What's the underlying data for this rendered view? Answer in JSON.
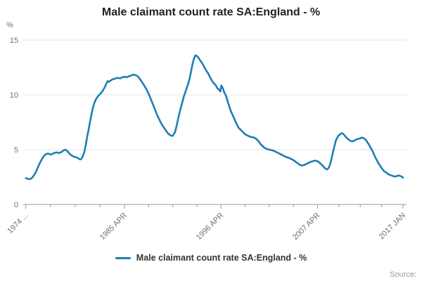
{
  "title": "Male claimant count rate SA:England - %",
  "legend": {
    "label": "Male claimant count rate SA:England - %"
  },
  "source_label": "Source:",
  "colors": {
    "line": "#1d7fb5",
    "grid": "#e6e6e6",
    "axis": "#999999",
    "tick_label": "#707070",
    "title_text": "#222222"
  },
  "chart_data": {
    "type": "line",
    "title": "Male claimant count rate SA:England - %",
    "xlabel": "",
    "ylabel": "%",
    "grid": true,
    "legend_position": "bottom",
    "x_range": [
      1973.7,
      2017.4
    ],
    "y_range": [
      0,
      15
    ],
    "y_ticks": [
      0,
      5,
      10,
      15
    ],
    "x_ticks": [
      {
        "x": 1974.0,
        "label": "1974 ..."
      },
      {
        "x": 1985.25,
        "label": "1985 APR"
      },
      {
        "x": 1996.25,
        "label": "1996 APR"
      },
      {
        "x": 2007.25,
        "label": "2007 APR"
      },
      {
        "x": 2017.0,
        "label": "2017 JAN"
      }
    ],
    "series": [
      {
        "name": "Male claimant count rate SA:England - %",
        "color": "#1d7fb5",
        "points": [
          [
            1974.0,
            2.4
          ],
          [
            1974.17,
            2.35
          ],
          [
            1974.33,
            2.3
          ],
          [
            1974.5,
            2.32
          ],
          [
            1974.67,
            2.4
          ],
          [
            1974.83,
            2.55
          ],
          [
            1975.0,
            2.75
          ],
          [
            1975.17,
            3.0
          ],
          [
            1975.33,
            3.3
          ],
          [
            1975.5,
            3.6
          ],
          [
            1975.67,
            3.9
          ],
          [
            1975.83,
            4.15
          ],
          [
            1976.0,
            4.35
          ],
          [
            1976.17,
            4.5
          ],
          [
            1976.33,
            4.6
          ],
          [
            1976.5,
            4.65
          ],
          [
            1976.67,
            4.6
          ],
          [
            1976.83,
            4.55
          ],
          [
            1977.0,
            4.6
          ],
          [
            1977.25,
            4.7
          ],
          [
            1977.5,
            4.75
          ],
          [
            1977.75,
            4.7
          ],
          [
            1978.0,
            4.75
          ],
          [
            1978.25,
            4.9
          ],
          [
            1978.5,
            5.0
          ],
          [
            1978.75,
            4.85
          ],
          [
            1979.0,
            4.6
          ],
          [
            1979.25,
            4.45
          ],
          [
            1979.5,
            4.35
          ],
          [
            1979.75,
            4.3
          ],
          [
            1980.0,
            4.2
          ],
          [
            1980.17,
            4.1
          ],
          [
            1980.33,
            4.15
          ],
          [
            1980.5,
            4.4
          ],
          [
            1980.67,
            4.8
          ],
          [
            1980.83,
            5.4
          ],
          [
            1981.0,
            6.2
          ],
          [
            1981.17,
            6.9
          ],
          [
            1981.33,
            7.6
          ],
          [
            1981.5,
            8.3
          ],
          [
            1981.67,
            8.9
          ],
          [
            1981.83,
            9.3
          ],
          [
            1982.0,
            9.6
          ],
          [
            1982.25,
            9.9
          ],
          [
            1982.5,
            10.1
          ],
          [
            1982.75,
            10.35
          ],
          [
            1983.0,
            10.7
          ],
          [
            1983.17,
            11.0
          ],
          [
            1983.33,
            11.25
          ],
          [
            1983.5,
            11.2
          ],
          [
            1983.67,
            11.3
          ],
          [
            1983.83,
            11.4
          ],
          [
            1984.0,
            11.45
          ],
          [
            1984.25,
            11.5
          ],
          [
            1984.5,
            11.55
          ],
          [
            1984.75,
            11.5
          ],
          [
            1985.0,
            11.6
          ],
          [
            1985.25,
            11.65
          ],
          [
            1985.5,
            11.6
          ],
          [
            1985.75,
            11.7
          ],
          [
            1986.0,
            11.75
          ],
          [
            1986.25,
            11.85
          ],
          [
            1986.5,
            11.8
          ],
          [
            1986.75,
            11.7
          ],
          [
            1987.0,
            11.45
          ],
          [
            1987.25,
            11.15
          ],
          [
            1987.5,
            10.85
          ],
          [
            1987.75,
            10.5
          ],
          [
            1988.0,
            10.1
          ],
          [
            1988.25,
            9.6
          ],
          [
            1988.5,
            9.1
          ],
          [
            1988.75,
            8.6
          ],
          [
            1989.0,
            8.1
          ],
          [
            1989.25,
            7.7
          ],
          [
            1989.5,
            7.3
          ],
          [
            1989.75,
            7.0
          ],
          [
            1990.0,
            6.7
          ],
          [
            1990.25,
            6.45
          ],
          [
            1990.5,
            6.3
          ],
          [
            1990.75,
            6.25
          ],
          [
            1991.0,
            6.6
          ],
          [
            1991.17,
            7.1
          ],
          [
            1991.33,
            7.7
          ],
          [
            1991.5,
            8.3
          ],
          [
            1991.67,
            8.8
          ],
          [
            1991.83,
            9.3
          ],
          [
            1992.0,
            9.8
          ],
          [
            1992.17,
            10.2
          ],
          [
            1992.33,
            10.6
          ],
          [
            1992.5,
            11.0
          ],
          [
            1992.67,
            11.5
          ],
          [
            1992.83,
            12.1
          ],
          [
            1993.0,
            12.8
          ],
          [
            1993.17,
            13.3
          ],
          [
            1993.33,
            13.6
          ],
          [
            1993.5,
            13.55
          ],
          [
            1993.67,
            13.4
          ],
          [
            1993.83,
            13.2
          ],
          [
            1994.0,
            13.0
          ],
          [
            1994.17,
            12.8
          ],
          [
            1994.33,
            12.55
          ],
          [
            1994.5,
            12.3
          ],
          [
            1994.67,
            12.1
          ],
          [
            1994.83,
            11.9
          ],
          [
            1995.0,
            11.6
          ],
          [
            1995.17,
            11.35
          ],
          [
            1995.33,
            11.15
          ],
          [
            1995.5,
            11.0
          ],
          [
            1995.67,
            10.85
          ],
          [
            1995.83,
            10.6
          ],
          [
            1996.0,
            10.5
          ],
          [
            1996.17,
            10.3
          ],
          [
            1996.29,
            10.85
          ],
          [
            1996.46,
            10.6
          ],
          [
            1996.63,
            10.2
          ],
          [
            1996.83,
            9.9
          ],
          [
            1997.0,
            9.4
          ],
          [
            1997.17,
            9.0
          ],
          [
            1997.33,
            8.6
          ],
          [
            1997.5,
            8.3
          ],
          [
            1997.67,
            8.0
          ],
          [
            1997.83,
            7.7
          ],
          [
            1998.0,
            7.4
          ],
          [
            1998.25,
            7.0
          ],
          [
            1998.5,
            6.8
          ],
          [
            1998.75,
            6.6
          ],
          [
            1999.0,
            6.4
          ],
          [
            1999.25,
            6.3
          ],
          [
            1999.5,
            6.2
          ],
          [
            1999.75,
            6.15
          ],
          [
            2000.0,
            6.1
          ],
          [
            2000.25,
            6.0
          ],
          [
            2000.5,
            5.8
          ],
          [
            2000.75,
            5.5
          ],
          [
            2001.0,
            5.3
          ],
          [
            2001.25,
            5.15
          ],
          [
            2001.5,
            5.05
          ],
          [
            2001.75,
            5.0
          ],
          [
            2002.0,
            4.95
          ],
          [
            2002.25,
            4.9
          ],
          [
            2002.5,
            4.8
          ],
          [
            2002.75,
            4.7
          ],
          [
            2003.0,
            4.6
          ],
          [
            2003.25,
            4.5
          ],
          [
            2003.5,
            4.4
          ],
          [
            2003.75,
            4.3
          ],
          [
            2004.0,
            4.25
          ],
          [
            2004.25,
            4.15
          ],
          [
            2004.5,
            4.05
          ],
          [
            2004.75,
            3.9
          ],
          [
            2005.0,
            3.75
          ],
          [
            2005.25,
            3.6
          ],
          [
            2005.5,
            3.55
          ],
          [
            2005.75,
            3.6
          ],
          [
            2006.0,
            3.7
          ],
          [
            2006.25,
            3.8
          ],
          [
            2006.5,
            3.9
          ],
          [
            2006.75,
            3.95
          ],
          [
            2007.0,
            4.0
          ],
          [
            2007.25,
            3.95
          ],
          [
            2007.5,
            3.8
          ],
          [
            2007.75,
            3.6
          ],
          [
            2008.0,
            3.4
          ],
          [
            2008.17,
            3.25
          ],
          [
            2008.33,
            3.2
          ],
          [
            2008.5,
            3.3
          ],
          [
            2008.67,
            3.6
          ],
          [
            2008.83,
            4.1
          ],
          [
            2009.0,
            4.7
          ],
          [
            2009.17,
            5.3
          ],
          [
            2009.33,
            5.8
          ],
          [
            2009.5,
            6.1
          ],
          [
            2009.67,
            6.3
          ],
          [
            2009.83,
            6.4
          ],
          [
            2010.0,
            6.5
          ],
          [
            2010.17,
            6.45
          ],
          [
            2010.33,
            6.3
          ],
          [
            2010.5,
            6.15
          ],
          [
            2010.67,
            6.0
          ],
          [
            2010.83,
            5.9
          ],
          [
            2011.0,
            5.8
          ],
          [
            2011.25,
            5.75
          ],
          [
            2011.5,
            5.85
          ],
          [
            2011.75,
            5.95
          ],
          [
            2012.0,
            6.0
          ],
          [
            2012.17,
            6.05
          ],
          [
            2012.33,
            6.1
          ],
          [
            2012.5,
            6.05
          ],
          [
            2012.67,
            5.95
          ],
          [
            2012.83,
            5.8
          ],
          [
            2013.0,
            5.6
          ],
          [
            2013.17,
            5.4
          ],
          [
            2013.33,
            5.15
          ],
          [
            2013.5,
            4.9
          ],
          [
            2013.67,
            4.6
          ],
          [
            2013.83,
            4.3
          ],
          [
            2014.0,
            4.05
          ],
          [
            2014.17,
            3.8
          ],
          [
            2014.33,
            3.6
          ],
          [
            2014.5,
            3.4
          ],
          [
            2014.67,
            3.2
          ],
          [
            2014.83,
            3.05
          ],
          [
            2015.0,
            2.95
          ],
          [
            2015.17,
            2.85
          ],
          [
            2015.33,
            2.75
          ],
          [
            2015.5,
            2.7
          ],
          [
            2015.67,
            2.65
          ],
          [
            2015.83,
            2.6
          ],
          [
            2016.0,
            2.55
          ],
          [
            2016.17,
            2.55
          ],
          [
            2016.33,
            2.6
          ],
          [
            2016.5,
            2.65
          ],
          [
            2016.67,
            2.6
          ],
          [
            2016.83,
            2.55
          ],
          [
            2017.0,
            2.45
          ]
        ]
      }
    ]
  }
}
